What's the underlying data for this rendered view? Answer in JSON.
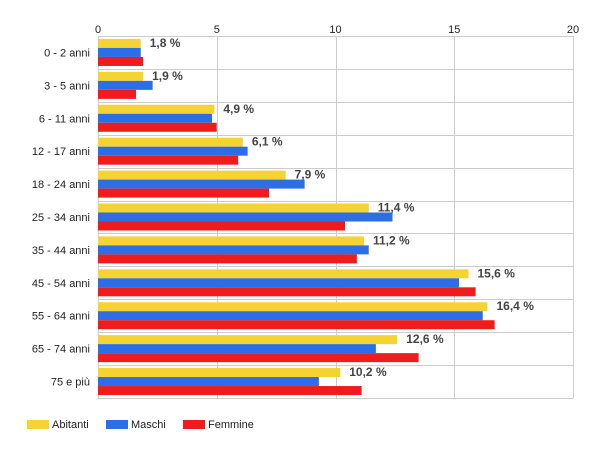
{
  "chart_data": {
    "type": "bar",
    "orientation": "horizontal",
    "categories": [
      "0 - 2 anni",
      "3 - 5 anni",
      "6 - 11 anni",
      "12 - 17 anni",
      "18 - 24 anni",
      "25 - 34 anni",
      "35 - 44 anni",
      "45 - 54 anni",
      "55 - 64 anni",
      "65 - 74 anni",
      "75 e più"
    ],
    "series": [
      {
        "name": "Abitanti",
        "color": "#f5d333",
        "values": [
          1.8,
          1.9,
          4.9,
          6.1,
          7.9,
          11.4,
          11.2,
          15.6,
          16.4,
          12.6,
          10.2
        ]
      },
      {
        "name": "Maschi",
        "color": "#2b6ee6",
        "values": [
          1.8,
          2.3,
          4.8,
          6.3,
          8.7,
          12.4,
          11.4,
          15.2,
          16.2,
          11.7,
          9.3
        ]
      },
      {
        "name": "Femmine",
        "color": "#ee1c1c",
        "values": [
          1.9,
          1.6,
          5.0,
          5.9,
          7.2,
          10.4,
          10.9,
          15.9,
          16.7,
          13.5,
          11.1
        ]
      }
    ],
    "data_labels": [
      "1,8 %",
      "1,9 %",
      "4,9 %",
      "6,1 %",
      "7,9 %",
      "11,4 %",
      "11,2 %",
      "15,6 %",
      "16,4 %",
      "12,6 %",
      "10,2 %"
    ],
    "x_ticks": [
      0,
      5,
      10,
      15,
      20
    ],
    "xlim": [
      0,
      20
    ],
    "grid": true,
    "legend_position": "bottom-left",
    "title": "",
    "xlabel": "",
    "ylabel": ""
  }
}
